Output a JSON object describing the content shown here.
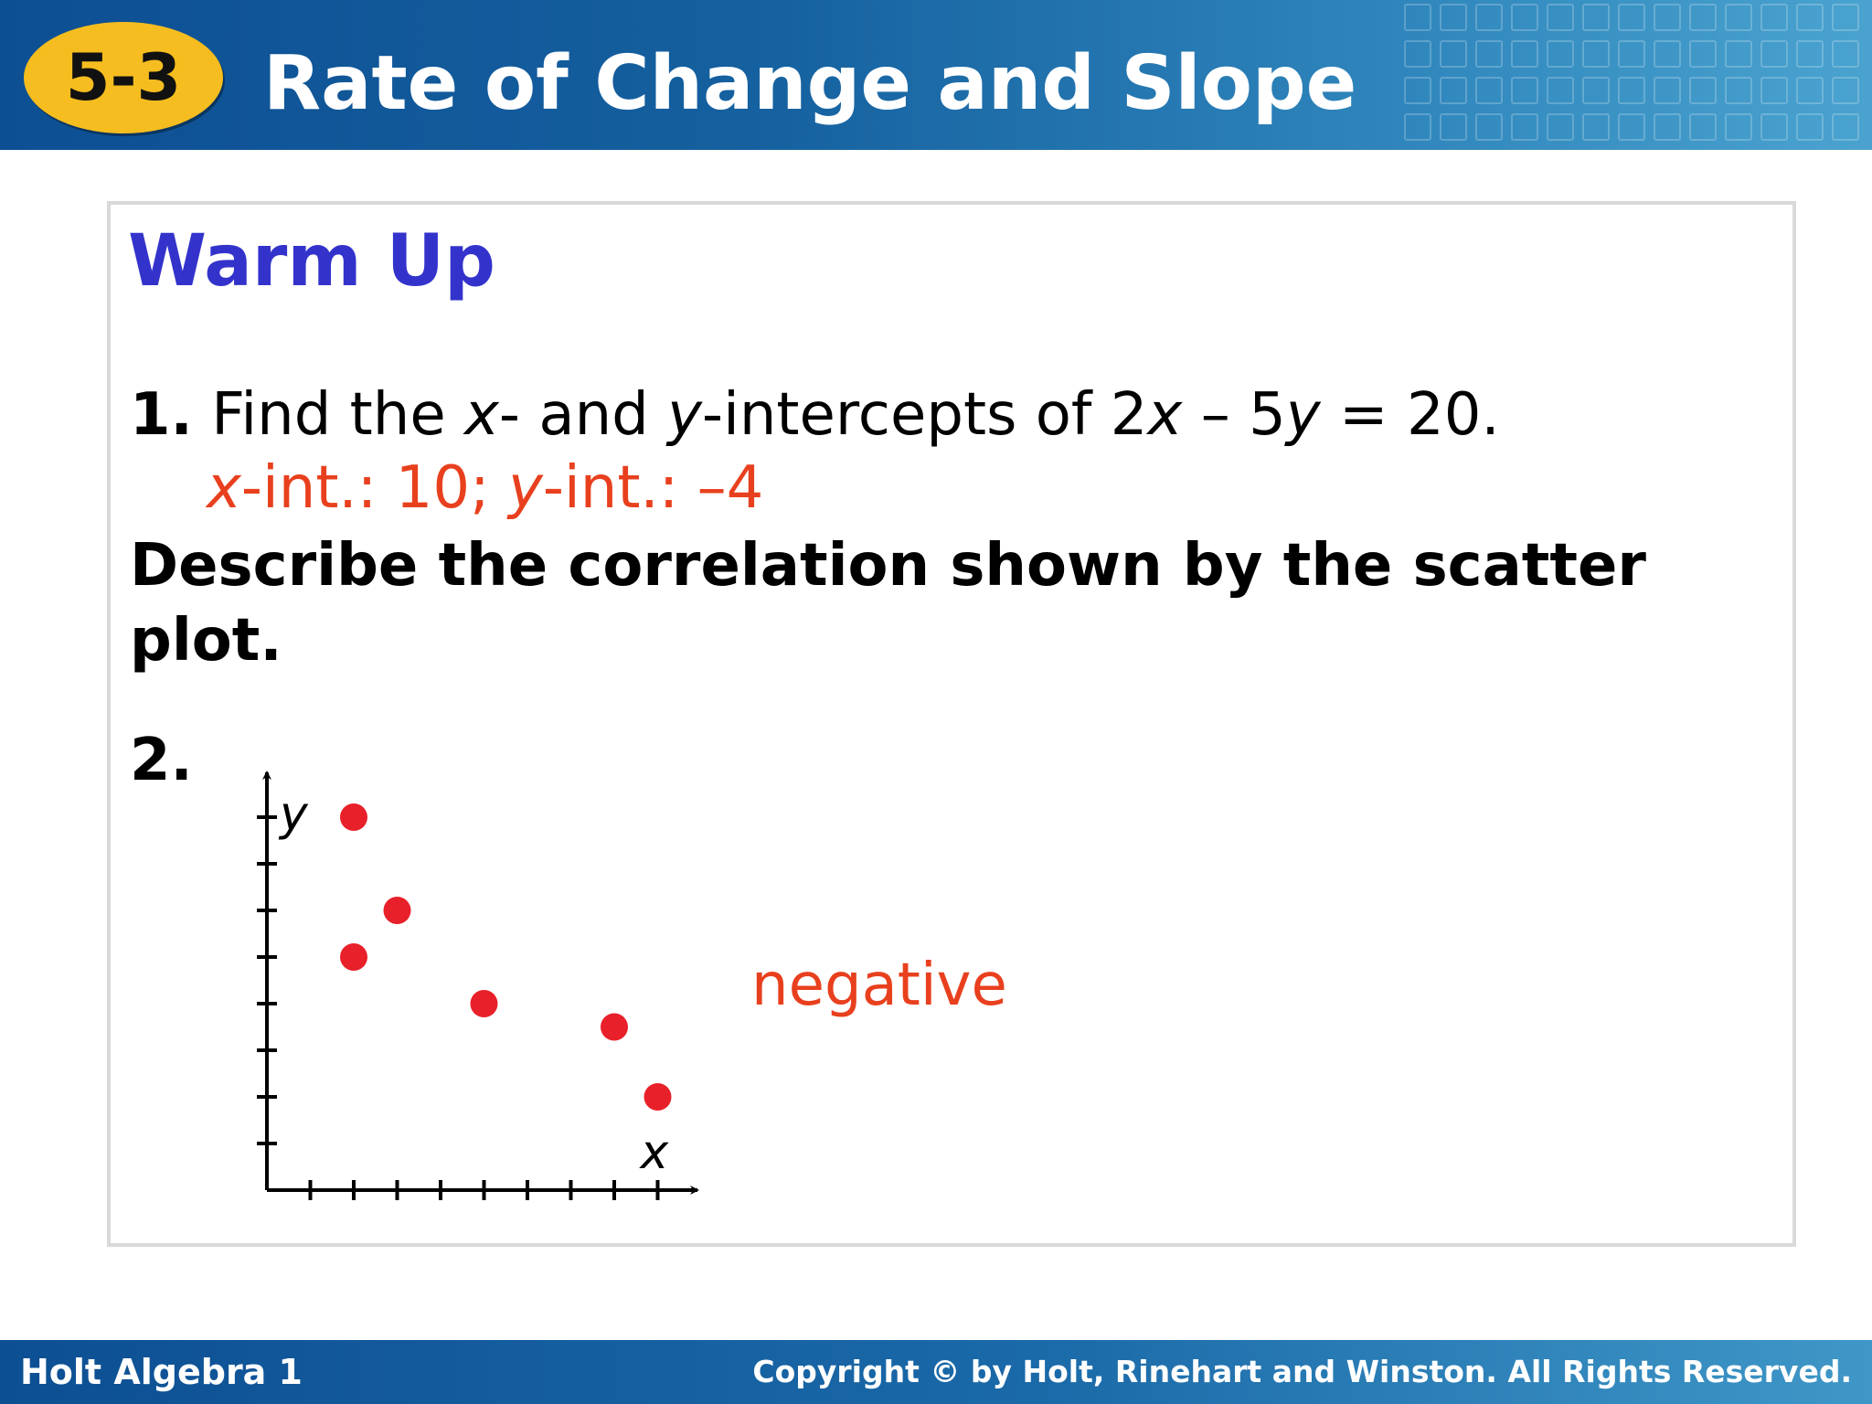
{
  "header": {
    "badge": "5-3",
    "title": "Rate of Change and Slope"
  },
  "warm_up": {
    "heading": "Warm Up",
    "q1": {
      "number": "1.",
      "t1": " Find the ",
      "x": "x",
      "t2": "- and ",
      "y": "y",
      "t3": "-intercepts of 2",
      "x2": "x",
      "t4": " – 5",
      "y2": "y",
      "t5": " = 20."
    },
    "a1": {
      "x": "x",
      "t1": "-int.: 10; ",
      "y": "y",
      "t2": "-int.: –4"
    },
    "instruction": "Describe the correlation shown by the scatter plot.",
    "q2_number": "2.",
    "q2_answer": "negative"
  },
  "chart_data": {
    "type": "scatter",
    "x": [
      2,
      3,
      2,
      5,
      8,
      9
    ],
    "y": [
      8,
      6,
      5,
      4,
      3.5,
      2
    ],
    "xlabel": "x",
    "ylabel": "y",
    "xlim": [
      0,
      10
    ],
    "ylim": [
      0,
      9
    ],
    "x_ticks": [
      1,
      2,
      3,
      4,
      5,
      6,
      7,
      8,
      9
    ],
    "y_ticks": [
      1,
      2,
      3,
      4,
      5,
      6,
      7,
      8
    ],
    "grid": false,
    "point_color": "#e8202a"
  },
  "footer": {
    "left": "Holt Algebra 1",
    "right": "Copyright © by Holt, Rinehart and Winston. All Rights Reserved."
  },
  "colors": {
    "header_blue": "#0d4f93",
    "badge_yellow": "#f5bd1f",
    "heading_blue": "#3333cc",
    "answer_red": "#e8401e"
  }
}
